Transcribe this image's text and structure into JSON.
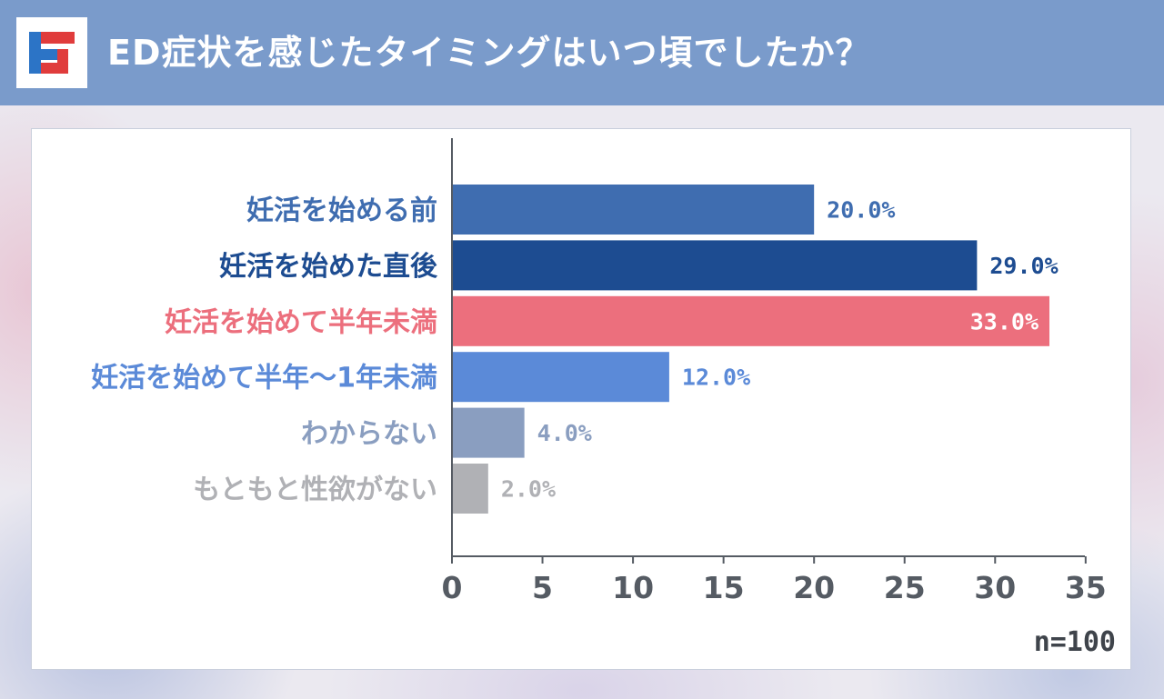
{
  "header": {
    "title": "ED症状を感じたタイミングはいつ頃でしたか？",
    "background_color": "#7a9bcb"
  },
  "logo": {
    "icon": "brand-logo-icon",
    "colors": [
      "#e03c3c",
      "#2c74c6"
    ]
  },
  "chart_data": {
    "type": "bar",
    "orientation": "horizontal",
    "title": "ED症状を感じたタイミングはいつ頃でしたか？",
    "categories": [
      "妊活を始める前",
      "妊活を始めた直後",
      "妊活を始めて半年未満",
      "妊活を始めて半年〜1年未満",
      "わからない",
      "もともと性欲がない"
    ],
    "values": [
      20.0,
      29.0,
      33.0,
      12.0,
      4.0,
      2.0
    ],
    "value_labels": [
      "20.0%",
      "29.0%",
      "33.0%",
      "12.0%",
      "4.0%",
      "2.0%"
    ],
    "bar_colors": [
      "#3f6db0",
      "#1d4c91",
      "#ec6f7d",
      "#5b8ad8",
      "#8a9ec0",
      "#b0b1b5"
    ],
    "label_colors": [
      "#3f6db0",
      "#1d4c91",
      "#ec6f7d",
      "#5b8ad8",
      "#8a9ec0",
      "#b0b1b5"
    ],
    "value_label_colors": [
      "#3f6db0",
      "#1d4c91",
      "#ffffff",
      "#5b8ad8",
      "#8a9ec0",
      "#b0b1b5"
    ],
    "xlim": [
      0,
      35
    ],
    "xticks": [
      0,
      5,
      10,
      15,
      20,
      25,
      30,
      35
    ],
    "xlabel": "",
    "ylabel": "",
    "grid": false
  },
  "footer": {
    "sample_size": "n=100"
  }
}
